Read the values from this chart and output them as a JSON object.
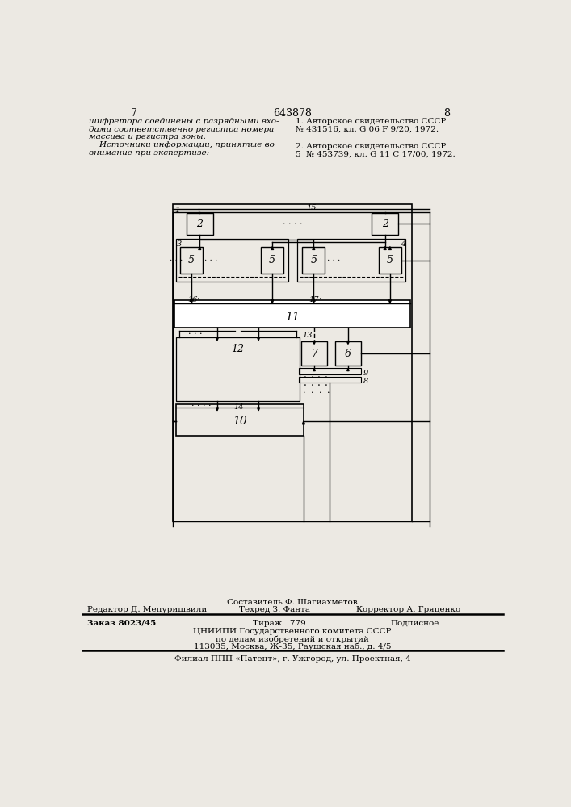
{
  "bg_color": "#ece9e3",
  "page_num_left": "7",
  "page_num_center": "643878",
  "page_num_right": "8",
  "left_text": [
    "шифретора соединены с разрядными вхо-",
    "дами соответственно регистра номера",
    "массива и регистра зоны.",
    "    Источники информации, принятые во",
    "внимание при экспертизе:"
  ],
  "right_ref1_line1": "1. Авторское свидетельство СССР",
  "right_ref1_line2": "№ 431516, кл. G 06 F 9/20, 1972.",
  "right_ref2_line1": "2. Авторское свидетельство СССР",
  "right_ref2_line2": "5  № 453739, кл. G 11 C 17/00, 1972.",
  "footer_editor": "Редактор Д. Мепуришвили",
  "footer_compiler": "Составитель Ф. Шагиахметов",
  "footer_techred": "Техред З. Фанта",
  "footer_corrector": "Корректор А. Гряценко",
  "footer_order": "Заказ 8023/45",
  "footer_tirazh": "Тираж   779",
  "footer_podpisnoe": "Подписное",
  "footer_org1": "ЦНИИПИ Государственного комитета СССР",
  "footer_org2": "по делам изобретений и открытий",
  "footer_org3": "113035, Москва, Ж-35, Раушская наб., д. 4/5",
  "footer_filial": "Филиал ППП «Патент», г. Ужгород, ул. Проектная, 4"
}
